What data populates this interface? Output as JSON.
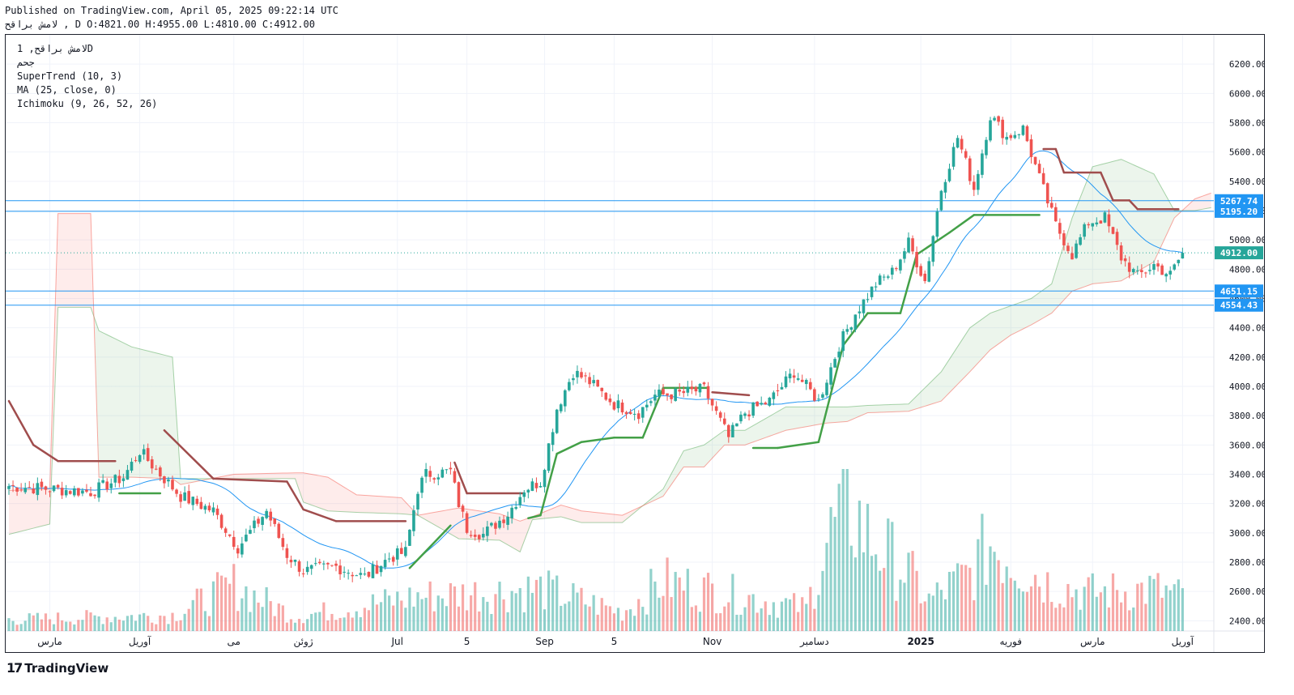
{
  "header": {
    "published": "Published on TradingView.com, April 05, 2025 09:22:14 UTC",
    "ohlc": "لامش براقح , D O:4821.00 H:4955.00 L:4810.00 C:4912.00"
  },
  "legend": {
    "symbol": "لامش براقح, 1D",
    "exchange": "جحم",
    "supertrend": "SuperTrend (10, 3)",
    "ma": "MA (25, close, 0)",
    "ichimoku": "Ichimoku (9, 26, 52, 26)"
  },
  "footer": {
    "logo_mark": "17",
    "logo_text": "TradingView"
  },
  "colors": {
    "up": "#26a69a",
    "down": "#ef5350",
    "supertrend_up": "#43a047",
    "supertrend_down": "#a04d4d",
    "ma": "#2196f3",
    "level": "#2196f3",
    "last": "#26a69a"
  },
  "chart_data": {
    "type": "candlestick",
    "ylim": [
      2330,
      6400
    ],
    "y_ticks": [
      2400,
      2600,
      2800,
      3000,
      3200,
      3400,
      3600,
      3800,
      4000,
      4200,
      4400,
      4600,
      4800,
      5000,
      5200,
      5400,
      5600,
      5800,
      6000,
      6200
    ],
    "x_labels": [
      {
        "label": "مارس",
        "i": 10
      },
      {
        "label": "آوریل",
        "i": 32
      },
      {
        "label": "می",
        "i": 55
      },
      {
        "label": "ژوئن",
        "i": 72
      },
      {
        "label": "Jul",
        "i": 95
      },
      {
        "label": "5",
        "i": 112
      },
      {
        "label": "Sep",
        "i": 131
      },
      {
        "label": "5",
        "i": 148
      },
      {
        "label": "Nov",
        "i": 172
      },
      {
        "label": "دسامبر",
        "i": 197
      },
      {
        "label": "2025",
        "i": 223
      },
      {
        "label": "فوریه",
        "i": 245
      },
      {
        "label": "مارس",
        "i": 265
      },
      {
        "label": "آوریل",
        "i": 287
      }
    ],
    "price_levels": [
      {
        "value": 5267.74,
        "label": "5267.74"
      },
      {
        "value": 5195.2,
        "label": "5195.20"
      },
      {
        "value": 4651.15,
        "label": "4651.15"
      },
      {
        "value": 4554.43,
        "label": "4554.43"
      }
    ],
    "last_price": {
      "value": 4912.0,
      "label": "4912.00"
    },
    "keypoints": [
      [
        0,
        3320
      ],
      [
        10,
        3300
      ],
      [
        20,
        3280
      ],
      [
        28,
        3380
      ],
      [
        32,
        3560
      ],
      [
        37,
        3400
      ],
      [
        42,
        3250
      ],
      [
        50,
        3150
      ],
      [
        56,
        2900
      ],
      [
        63,
        3150
      ],
      [
        68,
        2850
      ],
      [
        72,
        2740
      ],
      [
        80,
        2770
      ],
      [
        87,
        2700
      ],
      [
        93,
        2830
      ],
      [
        97,
        2870
      ],
      [
        100,
        3300
      ],
      [
        102,
        3400
      ],
      [
        108,
        3420
      ],
      [
        110,
        3200
      ],
      [
        112,
        3030
      ],
      [
        116,
        2990
      ],
      [
        122,
        3130
      ],
      [
        126,
        3300
      ],
      [
        130,
        3350
      ],
      [
        134,
        3850
      ],
      [
        138,
        4100
      ],
      [
        142,
        4030
      ],
      [
        148,
        3880
      ],
      [
        154,
        3820
      ],
      [
        158,
        3940
      ],
      [
        164,
        3950
      ],
      [
        170,
        3980
      ],
      [
        176,
        3650
      ],
      [
        180,
        3820
      ],
      [
        186,
        3900
      ],
      [
        192,
        4100
      ],
      [
        198,
        3900
      ],
      [
        203,
        4280
      ],
      [
        207,
        4500
      ],
      [
        212,
        4700
      ],
      [
        216,
        4780
      ],
      [
        220,
        4980
      ],
      [
        224,
        4720
      ],
      [
        228,
        5350
      ],
      [
        232,
        5700
      ],
      [
        236,
        5350
      ],
      [
        240,
        5850
      ],
      [
        244,
        5700
      ],
      [
        248,
        5760
      ],
      [
        252,
        5420
      ],
      [
        256,
        5100
      ],
      [
        260,
        4900
      ],
      [
        264,
        5120
      ],
      [
        268,
        5150
      ],
      [
        272,
        4880
      ],
      [
        276,
        4750
      ],
      [
        280,
        4830
      ],
      [
        284,
        4760
      ],
      [
        287,
        4912
      ]
    ],
    "volume_max": 3400000,
    "volume_keypoints": [
      [
        0,
        300000
      ],
      [
        40,
        420000
      ],
      [
        55,
        1200000
      ],
      [
        70,
        380000
      ],
      [
        100,
        900000
      ],
      [
        130,
        1100000
      ],
      [
        150,
        500000
      ],
      [
        160,
        1300000
      ],
      [
        180,
        900000
      ],
      [
        195,
        600000
      ],
      [
        200,
        2300000
      ],
      [
        205,
        3400000
      ],
      [
        210,
        2500000
      ],
      [
        220,
        1500000
      ],
      [
        225,
        800000
      ],
      [
        235,
        1500000
      ],
      [
        240,
        2300000
      ],
      [
        255,
        1200000
      ],
      [
        265,
        1000000
      ],
      [
        280,
        1100000
      ],
      [
        287,
        900000
      ]
    ],
    "supertrend_keypoints": [
      [
        0,
        3900,
        "down"
      ],
      [
        6,
        3600,
        "down"
      ],
      [
        12,
        3490,
        "down"
      ],
      [
        26,
        3490,
        "down"
      ],
      [
        27,
        3270,
        "up"
      ],
      [
        37,
        3270,
        "up"
      ],
      [
        38,
        3700,
        "down"
      ],
      [
        50,
        3370,
        "down"
      ],
      [
        68,
        3350,
        "down"
      ],
      [
        72,
        3160,
        "down"
      ],
      [
        80,
        3080,
        "down"
      ],
      [
        97,
        3080,
        "down"
      ],
      [
        98,
        2760,
        "up"
      ],
      [
        108,
        3050,
        "up"
      ],
      [
        109,
        3480,
        "down"
      ],
      [
        112,
        3270,
        "down"
      ],
      [
        126,
        3270,
        "down"
      ],
      [
        127,
        3100,
        "up"
      ],
      [
        130,
        3120,
        "up"
      ],
      [
        134,
        3540,
        "up"
      ],
      [
        140,
        3620,
        "up"
      ],
      [
        148,
        3650,
        "up"
      ],
      [
        155,
        3650,
        "up"
      ],
      [
        160,
        3990,
        "up"
      ],
      [
        171,
        3990,
        "up"
      ],
      [
        172,
        3960,
        "down"
      ],
      [
        181,
        3940,
        "down"
      ],
      [
        182,
        3580,
        "up"
      ],
      [
        188,
        3580,
        "up"
      ],
      [
        198,
        3620,
        "up"
      ],
      [
        204,
        4280,
        "up"
      ],
      [
        210,
        4500,
        "up"
      ],
      [
        218,
        4500,
        "up"
      ],
      [
        222,
        4900,
        "up"
      ],
      [
        230,
        5050,
        "up"
      ],
      [
        236,
        5170,
        "up"
      ],
      [
        252,
        5170,
        "up"
      ],
      [
        253,
        5620,
        "down"
      ],
      [
        256,
        5620,
        "down"
      ],
      [
        258,
        5460,
        "down"
      ],
      [
        267,
        5460,
        "down"
      ],
      [
        270,
        5270,
        "down"
      ],
      [
        274,
        5270,
        "down"
      ],
      [
        276,
        5210,
        "down"
      ],
      [
        286,
        5210,
        "down"
      ]
    ],
    "cloud_keypoints": [
      [
        0,
        2990,
        3290
      ],
      [
        10,
        3060,
        3300
      ],
      [
        12,
        4540,
        5180
      ],
      [
        20,
        4540,
        5180
      ],
      [
        22,
        4380,
        3380
      ],
      [
        30,
        4270,
        3380
      ],
      [
        40,
        4200,
        3370
      ],
      [
        42,
        3370,
        3330
      ],
      [
        55,
        3370,
        3400
      ],
      [
        70,
        3370,
        3410
      ],
      [
        72,
        3210,
        3410
      ],
      [
        78,
        3150,
        3380
      ],
      [
        85,
        3140,
        3260
      ],
      [
        96,
        3130,
        3240
      ],
      [
        100,
        3120,
        3120
      ],
      [
        110,
        2960,
        3170
      ],
      [
        120,
        2950,
        3130
      ],
      [
        125,
        2870,
        3080
      ],
      [
        128,
        3090,
        3110
      ],
      [
        135,
        3110,
        3190
      ],
      [
        140,
        3070,
        3150
      ],
      [
        150,
        3070,
        3120
      ],
      [
        160,
        3300,
        3250
      ],
      [
        165,
        3560,
        3450
      ],
      [
        170,
        3600,
        3450
      ],
      [
        175,
        3700,
        3600
      ],
      [
        180,
        3700,
        3600
      ],
      [
        185,
        3780,
        3650
      ],
      [
        190,
        3860,
        3700
      ],
      [
        200,
        3860,
        3750
      ],
      [
        205,
        3860,
        3760
      ],
      [
        210,
        3870,
        3820
      ],
      [
        220,
        3880,
        3830
      ],
      [
        228,
        4100,
        3900
      ],
      [
        235,
        4400,
        4100
      ],
      [
        240,
        4500,
        4250
      ],
      [
        245,
        4550,
        4350
      ],
      [
        250,
        4600,
        4420
      ],
      [
        255,
        4700,
        4500
      ],
      [
        260,
        5150,
        4650
      ],
      [
        265,
        5500,
        4700
      ],
      [
        272,
        5550,
        4720
      ],
      [
        280,
        5450,
        4850
      ],
      [
        285,
        5200,
        5150
      ],
      [
        290,
        5200,
        5280
      ],
      [
        294,
        5220,
        5320
      ]
    ]
  }
}
